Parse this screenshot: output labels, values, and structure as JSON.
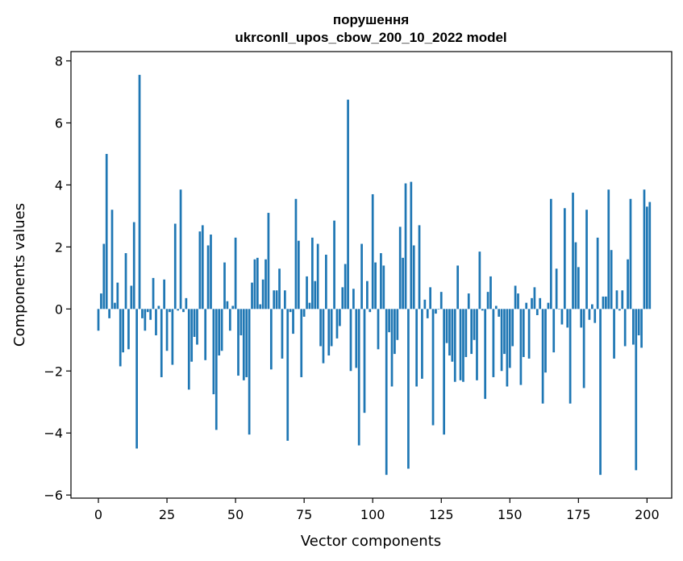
{
  "chart_data": {
    "type": "bar",
    "title": "порушення",
    "subtitle": "ukrconll_upos_cbow_200_10_2022 model",
    "xlabel": "Vector components",
    "ylabel": "Components values",
    "xlim": [
      -10,
      209
    ],
    "ylim": [
      -6.1,
      8.3
    ],
    "x_ticks": [
      0,
      25,
      50,
      75,
      100,
      125,
      150,
      175,
      200
    ],
    "y_ticks": [
      -6,
      -4,
      -2,
      0,
      2,
      4,
      6,
      8
    ],
    "x_tick_labels": [
      "0",
      "25",
      "50",
      "75",
      "100",
      "125",
      "150",
      "175",
      "200"
    ],
    "y_tick_labels": [
      "−6",
      "−4",
      "−2",
      "0",
      "2",
      "4",
      "6",
      "8"
    ],
    "bar_color": "#1f77b4",
    "grid": false,
    "values": [
      -0.7,
      0.5,
      2.1,
      5.0,
      -0.3,
      3.2,
      0.2,
      0.85,
      -1.85,
      -1.4,
      1.8,
      -1.3,
      0.75,
      2.8,
      -4.5,
      7.55,
      -0.3,
      -0.7,
      -0.1,
      -0.35,
      1.0,
      -0.85,
      0.1,
      -2.2,
      0.95,
      -1.35,
      -0.1,
      -1.8,
      2.75,
      -0.05,
      3.85,
      -0.1,
      0.35,
      -2.6,
      -1.7,
      -0.9,
      -1.15,
      2.5,
      2.7,
      -1.65,
      2.05,
      2.4,
      -2.75,
      -3.9,
      -1.5,
      -1.35,
      1.5,
      0.25,
      -0.7,
      0.1,
      2.3,
      -2.15,
      -0.85,
      -2.3,
      -2.2,
      -4.05,
      0.85,
      1.6,
      1.65,
      0.15,
      0.95,
      1.6,
      3.1,
      -1.95,
      0.6,
      0.6,
      1.3,
      -1.6,
      0.6,
      -4.25,
      -0.1,
      -0.8,
      3.55,
      2.2,
      -2.2,
      -0.25,
      1.05,
      0.2,
      2.3,
      0.9,
      2.1,
      -1.2,
      -1.75,
      1.75,
      -1.5,
      -1.2,
      2.85,
      -0.95,
      -0.55,
      0.7,
      1.45,
      6.75,
      -2.0,
      0.65,
      -1.9,
      -4.4,
      2.1,
      -3.35,
      0.9,
      -0.1,
      3.7,
      1.5,
      -1.3,
      1.8,
      1.4,
      -5.35,
      -0.75,
      -2.5,
      -1.45,
      -1.0,
      2.65,
      1.65,
      4.05,
      -5.15,
      4.1,
      2.05,
      -2.5,
      2.7,
      -2.25,
      0.3,
      -0.3,
      0.7,
      -3.75,
      -0.15,
      0.0,
      0.55,
      -4.05,
      -1.1,
      -1.5,
      -1.7,
      -2.35,
      1.4,
      -2.3,
      -2.35,
      -1.55,
      0.5,
      -1.45,
      -1.0,
      -2.3,
      1.85,
      -0.05,
      -2.9,
      0.55,
      1.05,
      -2.2,
      0.1,
      -0.25,
      -2.0,
      -1.45,
      -2.5,
      -1.9,
      -1.2,
      0.75,
      0.5,
      -2.45,
      -1.55,
      0.2,
      -1.6,
      0.35,
      0.7,
      -0.2,
      0.35,
      -3.05,
      -2.05,
      0.2,
      3.55,
      -1.4,
      1.3,
      0.0,
      -0.5,
      3.25,
      -0.6,
      -3.05,
      3.75,
      2.15,
      1.35,
      -0.6,
      -2.55,
      3.2,
      -0.35,
      0.15,
      -0.45,
      2.3,
      -5.35,
      0.4,
      0.4,
      3.85,
      1.9,
      -1.6,
      0.6,
      -0.05,
      0.6,
      -1.2,
      1.6,
      3.55,
      -1.15,
      -5.2,
      -0.85,
      -1.25,
      3.85,
      3.3,
      3.45
    ]
  }
}
